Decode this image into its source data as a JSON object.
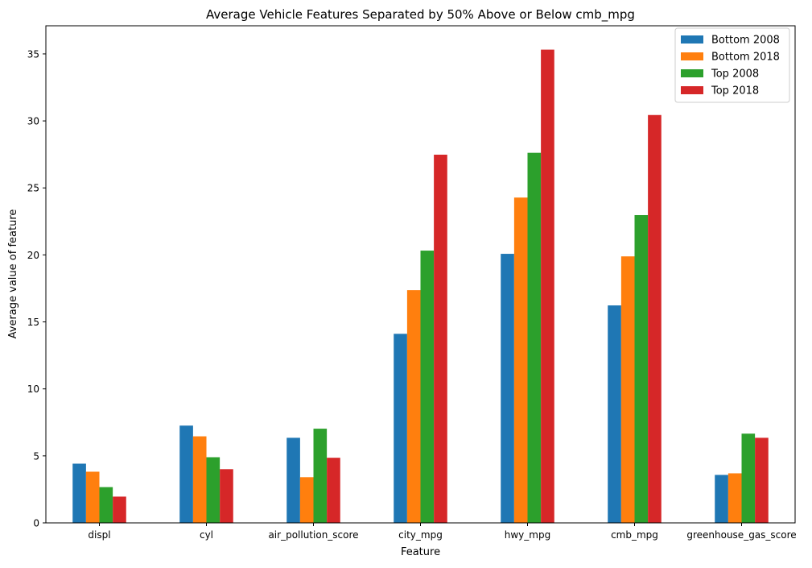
{
  "chart_data": {
    "type": "bar",
    "title": "Average Vehicle Features Separated by 50% Above or Below cmb_mpg",
    "xlabel": "Feature",
    "ylabel": "Average value of feature",
    "categories": [
      "displ",
      "cyl",
      "air_pollution_score",
      "city_mpg",
      "hwy_mpg",
      "cmb_mpg",
      "greenhouse_gas_score"
    ],
    "ylim": [
      0,
      37.1
    ],
    "yticks": [
      0,
      5,
      10,
      15,
      20,
      25,
      30,
      35
    ],
    "grid": false,
    "legend_position": "top-right",
    "series": [
      {
        "name": "Bottom 2008",
        "color": "#1f77b4",
        "values": [
          4.42,
          7.26,
          6.35,
          14.11,
          20.08,
          16.23,
          3.58
        ]
      },
      {
        "name": "Bottom 2018",
        "color": "#ff7f0e",
        "values": [
          3.82,
          6.46,
          3.41,
          17.37,
          24.28,
          19.89,
          3.7
        ]
      },
      {
        "name": "Top 2008",
        "color": "#2ca02c",
        "values": [
          2.67,
          4.9,
          7.03,
          20.32,
          27.62,
          22.97,
          6.66
        ]
      },
      {
        "name": "Top 2018",
        "color": "#d62728",
        "values": [
          1.96,
          4.01,
          4.86,
          27.48,
          35.32,
          30.44,
          6.35
        ]
      }
    ]
  }
}
